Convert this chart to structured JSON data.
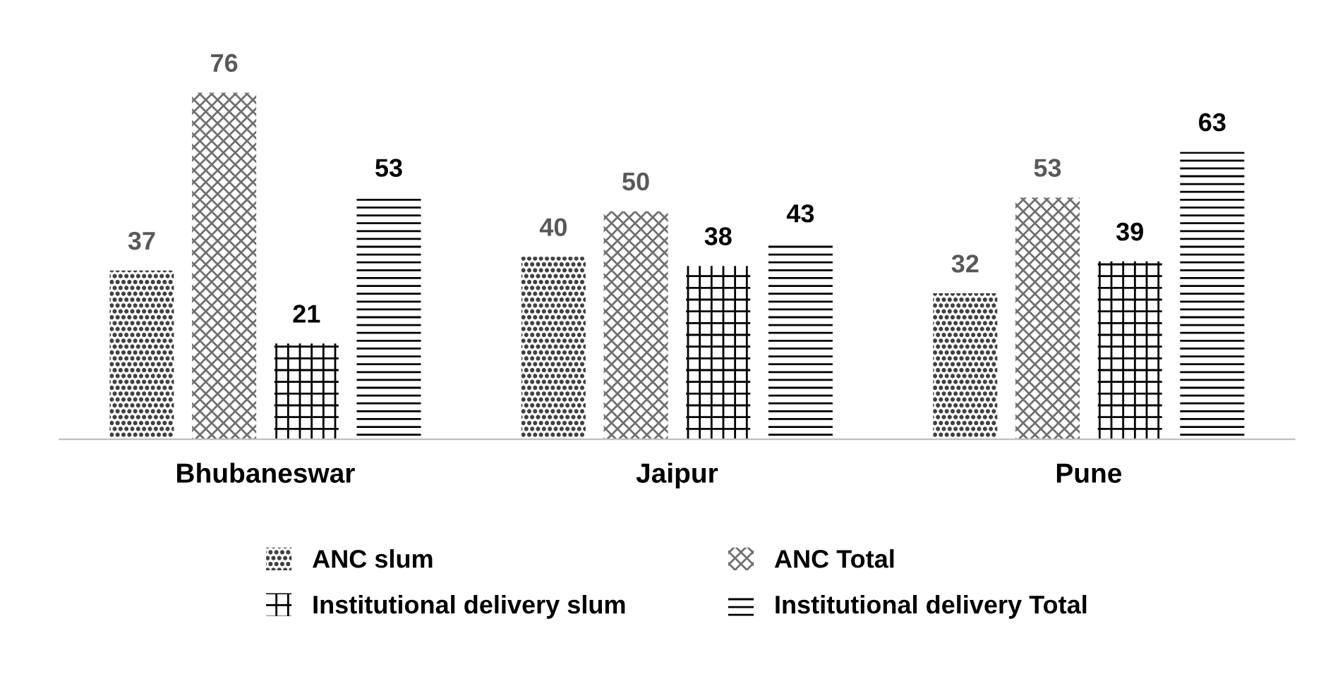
{
  "chart_data": {
    "type": "bar",
    "categories": [
      "Bhubaneswar",
      "Jaipur",
      "Pune"
    ],
    "series": [
      {
        "name": "ANC slum",
        "color": "#404040",
        "values": [
          37,
          40,
          32
        ]
      },
      {
        "name": "ANC Total",
        "color": "#707070",
        "values": [
          76,
          50,
          53
        ]
      },
      {
        "name": "Institutional delivery slum",
        "color": "#000000",
        "values": [
          21,
          38,
          39
        ]
      },
      {
        "name": "Institutional delivery Total",
        "color": "#000000",
        "values": [
          53,
          43,
          63
        ]
      }
    ],
    "data_labels": true,
    "legend": "bottom"
  }
}
